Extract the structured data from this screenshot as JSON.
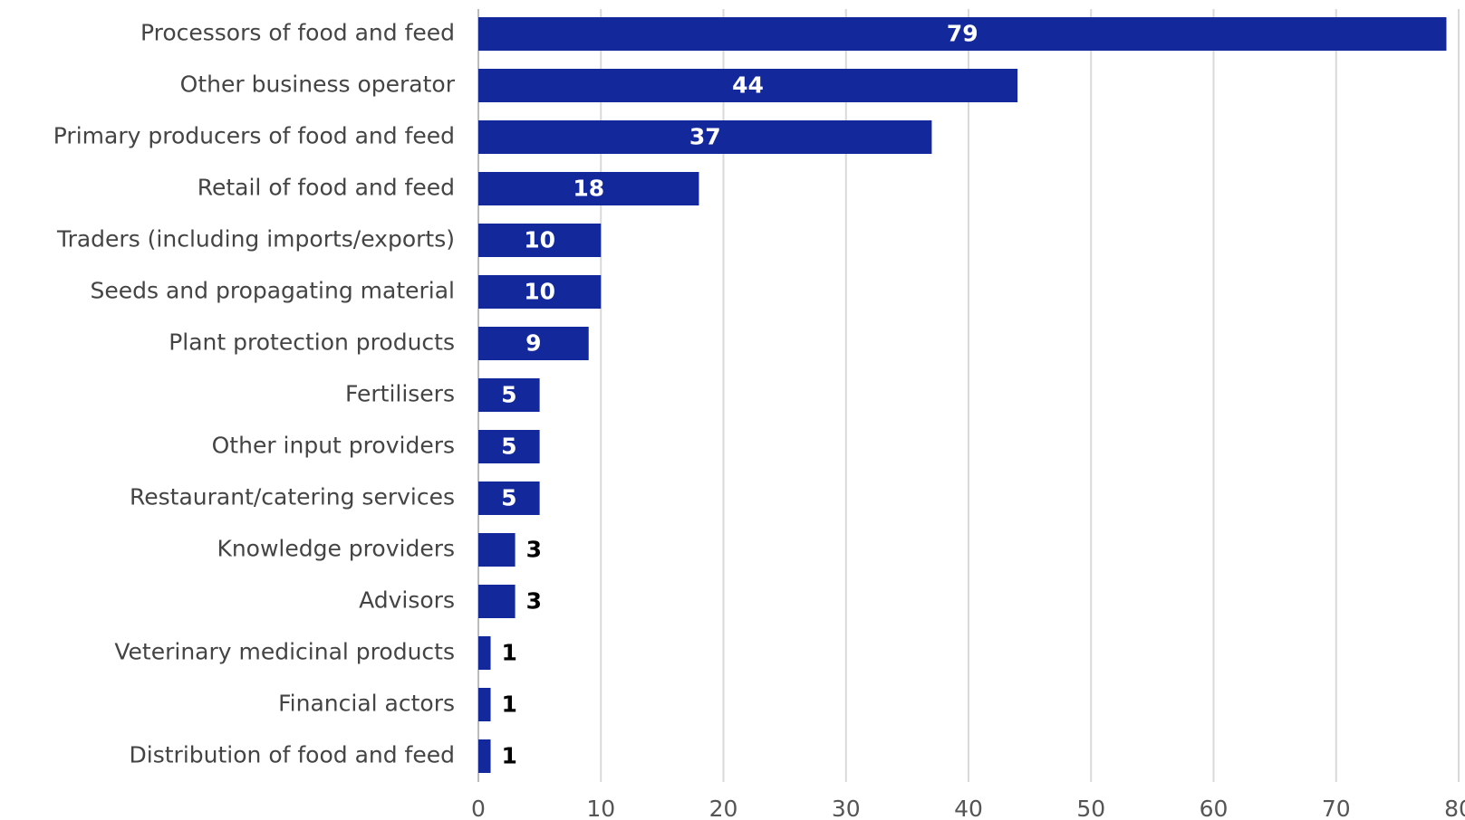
{
  "chart_data": {
    "type": "barh",
    "categories": [
      "Processors of food and feed",
      "Other business operator",
      "Primary producers of food and feed",
      "Retail of food and feed",
      "Traders (including imports/exports)",
      "Seeds and propagating material",
      "Plant protection products",
      "Fertilisers",
      "Other input providers",
      "Restaurant/catering services",
      "Knowledge providers",
      "Advisors",
      "Veterinary medicinal products",
      "Financial actors",
      "Distribution of food and feed"
    ],
    "values": [
      79,
      44,
      37,
      18,
      10,
      10,
      9,
      5,
      5,
      5,
      3,
      3,
      1,
      1,
      1
    ],
    "color": "#13289a",
    "xlim": [
      0,
      80
    ],
    "xticks": [
      0,
      10,
      20,
      30,
      40,
      50,
      60,
      70,
      80
    ],
    "grid": true
  }
}
